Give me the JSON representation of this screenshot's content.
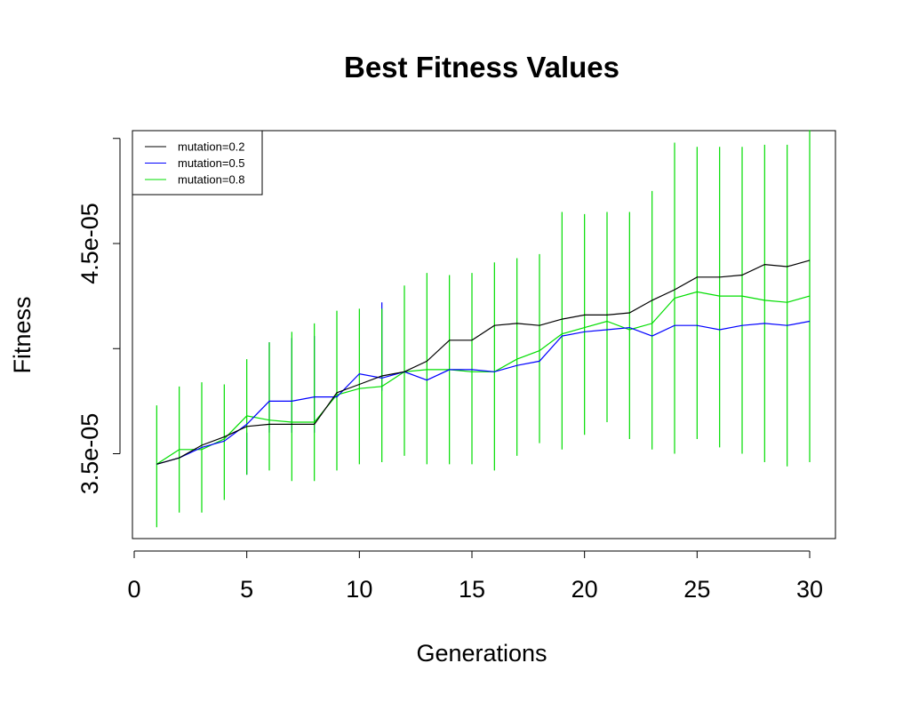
{
  "chart_data": {
    "type": "line",
    "title": "Best Fitness Values",
    "xlabel": "Generations",
    "ylabel": "Fitness",
    "xlim": [
      0,
      30
    ],
    "ylim": [
      3.1e-05,
      4.98e-05
    ],
    "x_ticks": [
      0,
      5,
      10,
      15,
      20,
      25,
      30
    ],
    "x_tick_labels": [
      "0",
      "5",
      "10",
      "15",
      "20",
      "25",
      "30"
    ],
    "y_ticks": [
      3.5e-05,
      4e-05,
      4.5e-05,
      5e-05
    ],
    "y_tick_labels": [
      "3.5e-05",
      "",
      "4.5e-05",
      ""
    ],
    "legend_position": "top-left",
    "x": [
      1,
      2,
      3,
      4,
      5,
      6,
      7,
      8,
      9,
      10,
      11,
      12,
      13,
      14,
      15,
      16,
      17,
      18,
      19,
      20,
      21,
      22,
      23,
      24,
      25,
      26,
      27,
      28,
      29,
      30
    ],
    "series": [
      {
        "name": "mutation=0.2",
        "color": "#000000",
        "values": [
          3.45e-05,
          3.48e-05,
          3.54e-05,
          3.58e-05,
          3.63e-05,
          3.64e-05,
          3.64e-05,
          3.64e-05,
          3.79e-05,
          3.83e-05,
          3.87e-05,
          3.89e-05,
          3.94e-05,
          4.04e-05,
          4.04e-05,
          4.11e-05,
          4.12e-05,
          4.11e-05,
          4.14e-05,
          4.16e-05,
          4.16e-05,
          4.17e-05,
          4.23e-05,
          4.28e-05,
          4.34e-05,
          4.34e-05,
          4.35e-05,
          4.4e-05,
          4.39e-05,
          4.42e-05
        ]
      },
      {
        "name": "mutation=0.5",
        "color": "#0000ff",
        "values": [
          3.45e-05,
          3.48e-05,
          3.53e-05,
          3.56e-05,
          3.64e-05,
          3.75e-05,
          3.75e-05,
          3.77e-05,
          3.77e-05,
          3.88e-05,
          3.86e-05,
          3.89e-05,
          3.85e-05,
          3.9e-05,
          3.9e-05,
          3.89e-05,
          3.92e-05,
          3.94e-05,
          4.06e-05,
          4.08e-05,
          4.09e-05,
          4.1e-05,
          4.06e-05,
          4.11e-05,
          4.11e-05,
          4.09e-05,
          4.11e-05,
          4.12e-05,
          4.11e-05,
          4.13e-05
        ],
        "error_bars": {
          "x": [
            5,
            6,
            7,
            8,
            11
          ],
          "low": [
            3.4e-05,
            3.6e-05,
            3.6e-05,
            3.6e-05,
            3.8e-05
          ],
          "high": [
            3.6e-05,
            4.03e-05,
            4.05e-05,
            4.06e-05,
            4.22e-05
          ]
        }
      },
      {
        "name": "mutation=0.8",
        "color": "#00dd00",
        "values": [
          3.45e-05,
          3.52e-05,
          3.52e-05,
          3.57e-05,
          3.68e-05,
          3.66e-05,
          3.65e-05,
          3.65e-05,
          3.78e-05,
          3.81e-05,
          3.82e-05,
          3.89e-05,
          3.9e-05,
          3.9e-05,
          3.89e-05,
          3.89e-05,
          3.95e-05,
          3.99e-05,
          4.07e-05,
          4.1e-05,
          4.13e-05,
          4.09e-05,
          4.12e-05,
          4.24e-05,
          4.27e-05,
          4.25e-05,
          4.25e-05,
          4.23e-05,
          4.22e-05,
          4.25e-05
        ],
        "error_bars": {
          "low": [
            3.15e-05,
            3.22e-05,
            3.22e-05,
            3.28e-05,
            3.4e-05,
            3.42e-05,
            3.37e-05,
            3.37e-05,
            3.42e-05,
            3.45e-05,
            3.46e-05,
            3.49e-05,
            3.45e-05,
            3.45e-05,
            3.45e-05,
            3.42e-05,
            3.49e-05,
            3.55e-05,
            3.52e-05,
            3.59e-05,
            3.65e-05,
            3.57e-05,
            3.52e-05,
            3.5e-05,
            3.57e-05,
            3.53e-05,
            3.5e-05,
            3.46e-05,
            3.44e-05,
            3.46e-05
          ],
          "high": [
            3.73e-05,
            3.82e-05,
            3.84e-05,
            3.83e-05,
            3.95e-05,
            4.03e-05,
            4.08e-05,
            4.12e-05,
            4.18e-05,
            4.19e-05,
            4.19e-05,
            4.3e-05,
            4.36e-05,
            4.35e-05,
            4.36e-05,
            4.41e-05,
            4.43e-05,
            4.45e-05,
            4.65e-05,
            4.64e-05,
            4.65e-05,
            4.65e-05,
            4.75e-05,
            4.98e-05,
            4.96e-05,
            4.96e-05,
            4.96e-05,
            4.97e-05,
            4.97e-05,
            5.04e-05
          ]
        }
      }
    ]
  }
}
